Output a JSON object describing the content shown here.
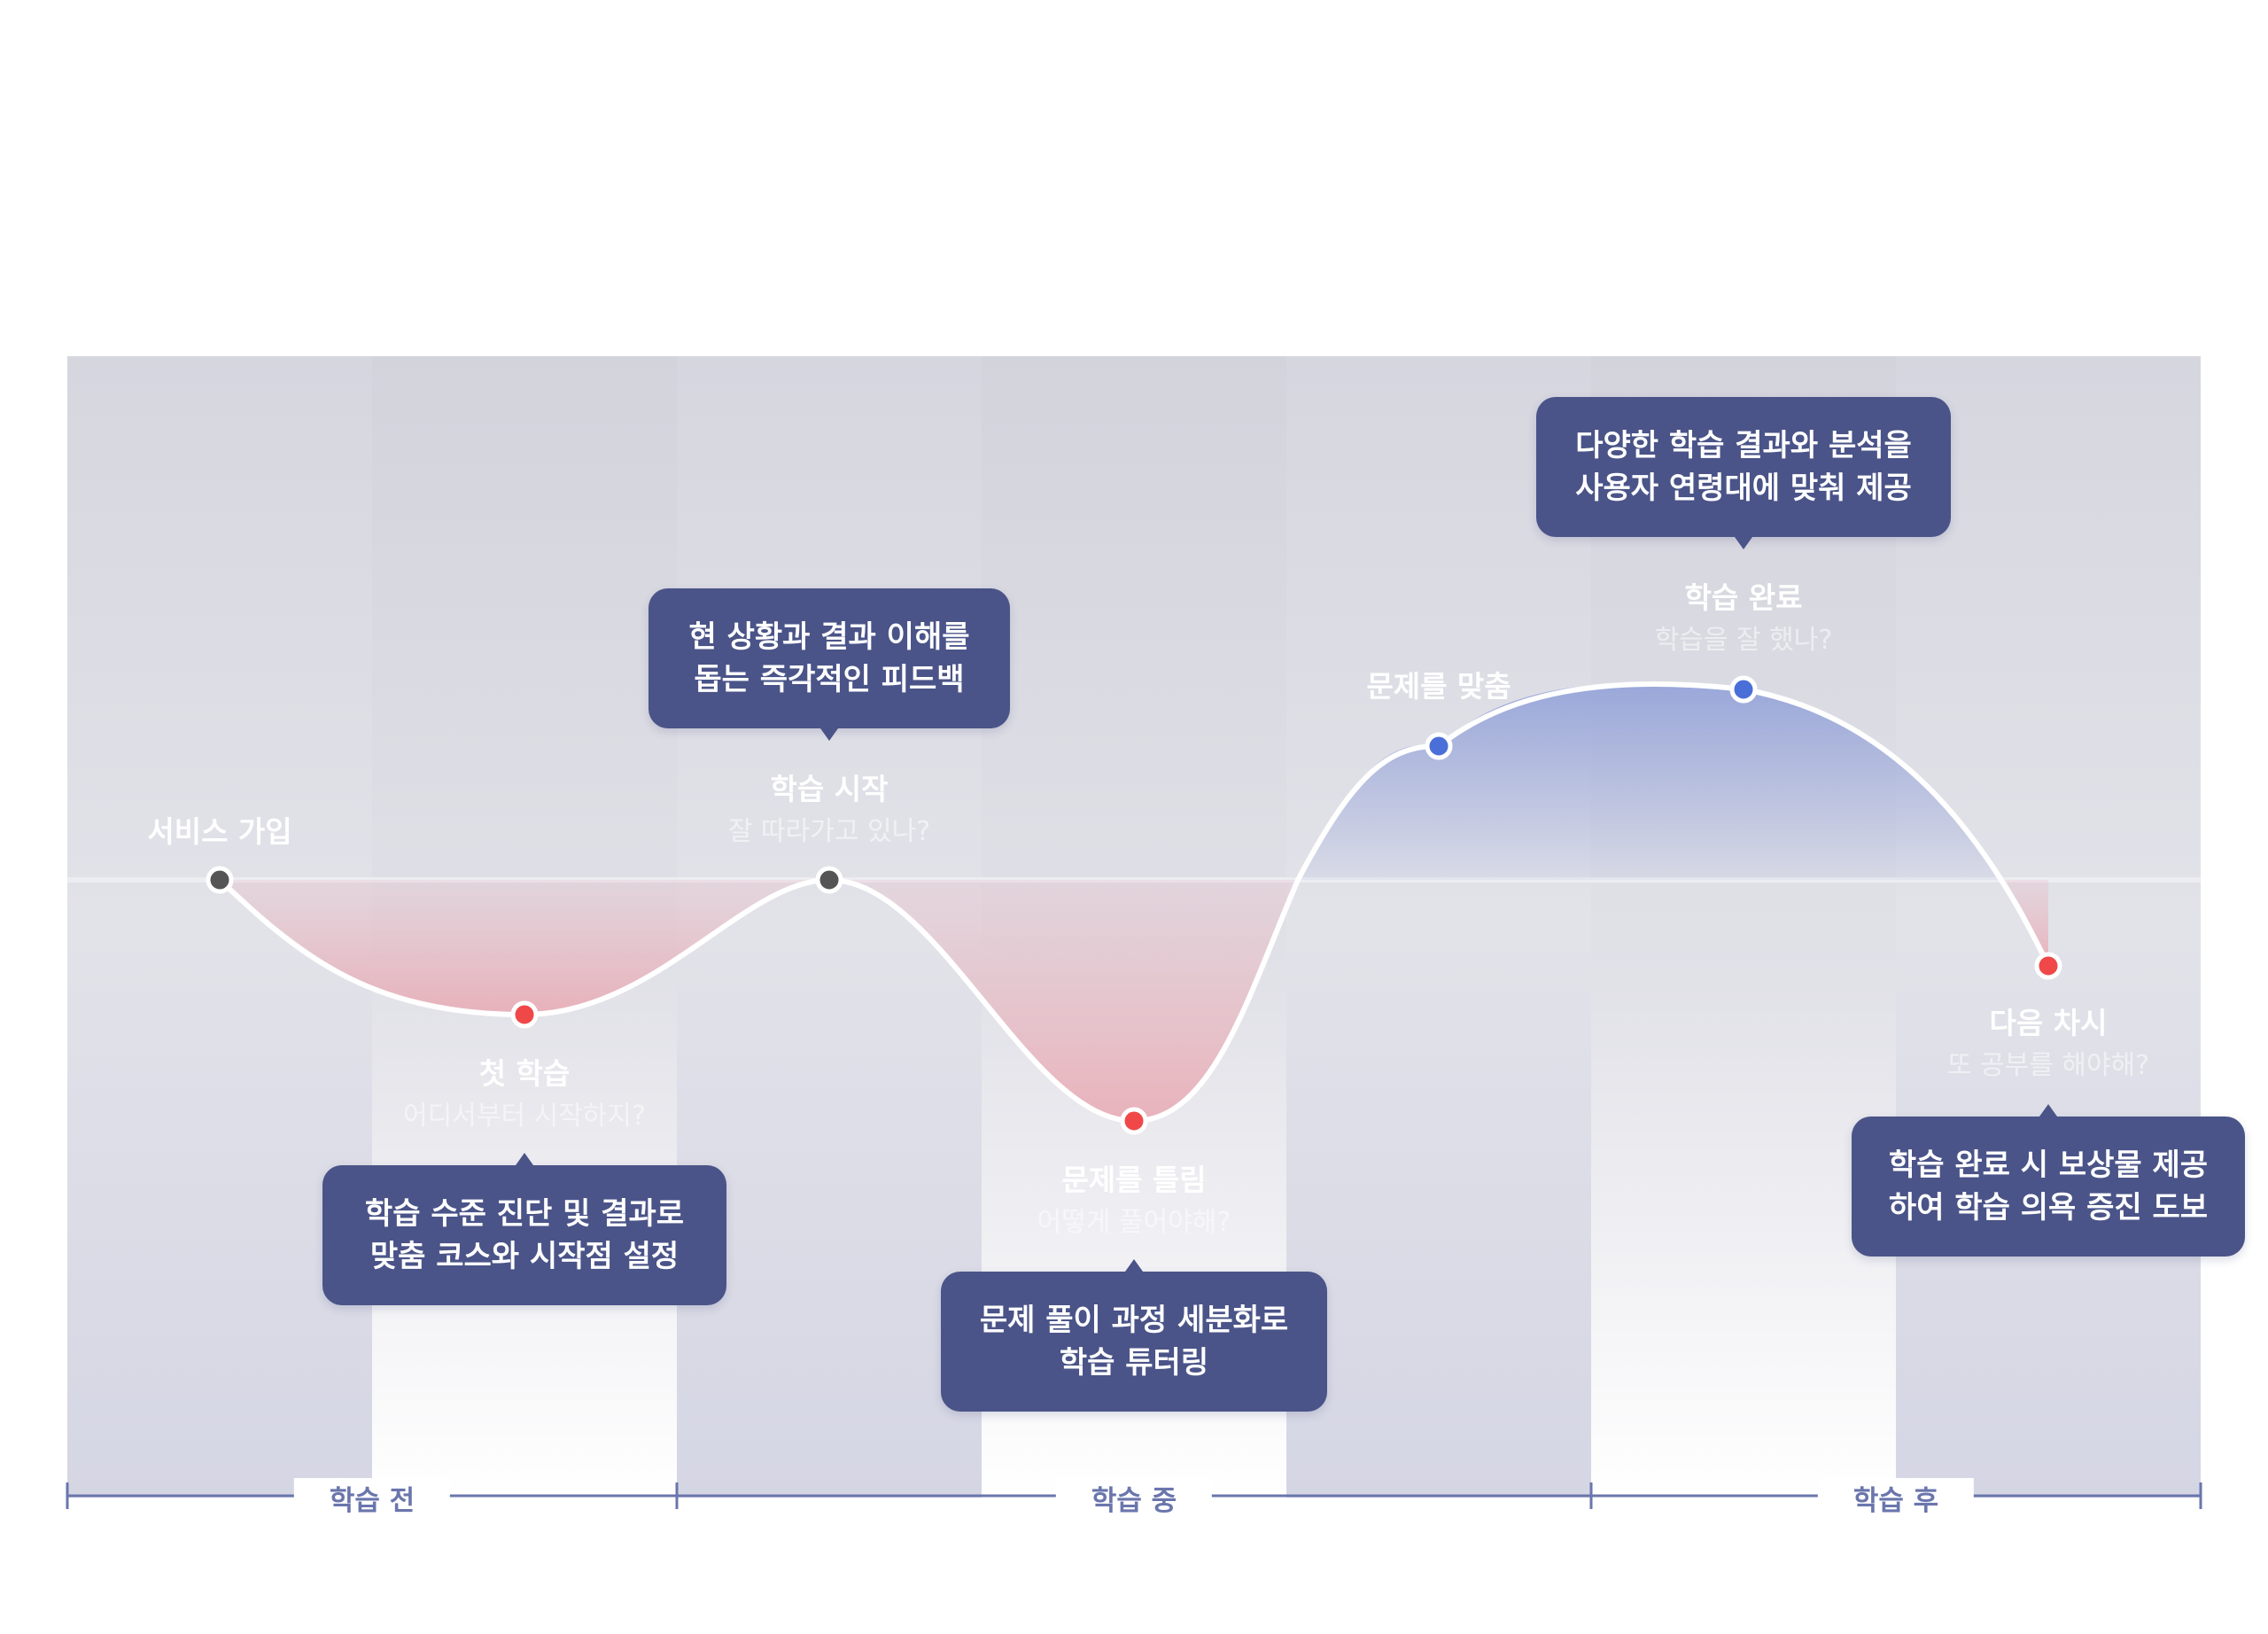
{
  "colors": {
    "callout_bg": "#4a5488",
    "curve": "#ffffff",
    "point_neutral": "#555555",
    "point_negative": "#f04848",
    "point_positive": "#4a6fd8",
    "fill_negative": "#e8b4bd",
    "fill_positive": "#8e9ed8",
    "timeline": "#6a76ac",
    "background_band": "#dcdce4"
  },
  "stages": [
    {
      "title": "서비스 가입",
      "subtitle": "",
      "tone": "neutral"
    },
    {
      "title": "첫 학습",
      "subtitle": "어디서부터 시작하지?",
      "tone": "negative"
    },
    {
      "title": "학습 시작",
      "subtitle": "잘 따라가고 있나?",
      "tone": "neutral"
    },
    {
      "title": "문제를 틀림",
      "subtitle": "어떻게 풀어야해?",
      "tone": "negative"
    },
    {
      "title": "문제를 맞춤",
      "subtitle": "",
      "tone": "positive"
    },
    {
      "title": "학습 완료",
      "subtitle": "학습을 잘 했나?",
      "tone": "positive"
    },
    {
      "title": "다음 차시",
      "subtitle": "또 공부를 해야해?",
      "tone": "negative"
    }
  ],
  "callouts": [
    {
      "line1": "학습 수준 진단 및 결과로",
      "line2": "맞춤 코스와 시작점 설정"
    },
    {
      "line1": "현 상황과 결과 이해를",
      "line2": "돕는 즉각적인 피드백"
    },
    {
      "line1": "문제 풀이 과정 세분화로",
      "line2": "학습 튜터링"
    },
    {
      "line1": "다양한 학습 결과와 분석을",
      "line2": "사용자 연령대에 맞춰 제공"
    },
    {
      "line1": "학습 완료 시 보상물 제공",
      "line2": "하여 학습 의욕 증진 도보"
    }
  ],
  "phases": [
    "학습 전",
    "학습 중",
    "학습 후"
  ]
}
